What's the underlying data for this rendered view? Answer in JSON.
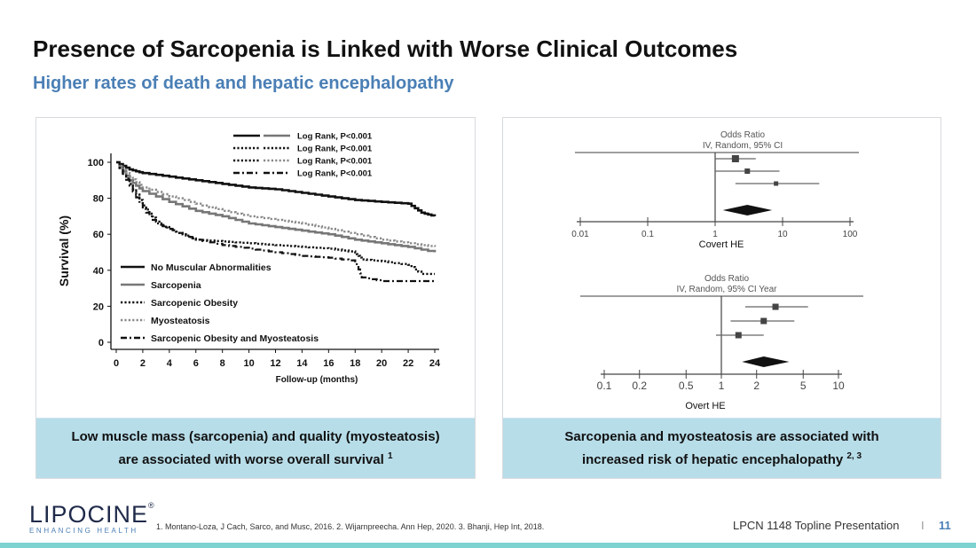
{
  "slide": {
    "title": "Presence of Sarcopenia is Linked with Worse Clinical Outcomes",
    "subtitle": "Higher rates of death and hepatic encephalopathy"
  },
  "left_panel": {
    "caption_line1": "Low muscle mass (sarcopenia) and quality (myosteatosis)",
    "caption_line2": "are associated with worse overall survival",
    "caption_sup": "1"
  },
  "right_panel": {
    "caption_line1": "Sarcopenia and myosteatosis are associated with",
    "caption_line2": "increased risk of hepatic encephalopathy",
    "caption_sup": "2, 3"
  },
  "footer": {
    "logo_text": "LIPOCINE",
    "logo_reg": "®",
    "logo_tagline": "ENHANCING HEALTH",
    "references": "1. Montano-Loza, J Cach, Sarco, and Musc, 2016. 2. Wijarnpreecha. Ann Hep, 2020. 3. Bhanji, Hep Int, 2018.",
    "presentation": "LPCN 1148 Topline Presentation",
    "separator": "I",
    "page": "11"
  },
  "chart_data": [
    {
      "type": "line",
      "subtype": "kaplan-meier",
      "title": "",
      "xlabel": "Follow-up (months)",
      "ylabel": "Survival (%)",
      "xlim": [
        0,
        24
      ],
      "ylim": [
        0,
        100
      ],
      "x_ticks": [
        0,
        2,
        4,
        6,
        8,
        10,
        12,
        14,
        16,
        18,
        20,
        22,
        24
      ],
      "y_ticks": [
        0,
        20,
        40,
        60,
        80,
        100
      ],
      "logrank_labels": [
        "Log Rank, P<0.001",
        "Log Rank, P<0.001",
        "Log Rank, P<0.001",
        "Log Rank, P<0.001"
      ],
      "logrank_styles": [
        "solid",
        "dotted",
        "dotted-gray",
        "dashdot"
      ],
      "series": [
        {
          "name": "No Muscular Abnormalities",
          "style": "solid-black",
          "x": [
            0,
            1,
            2,
            4,
            6,
            8,
            10,
            12,
            14,
            16,
            18,
            20,
            22,
            23,
            24
          ],
          "y": [
            100,
            96,
            94,
            92,
            90,
            88,
            86,
            85,
            83,
            81,
            79,
            78,
            77,
            72,
            70
          ]
        },
        {
          "name": "Sarcopenia",
          "style": "solid-gray",
          "x": [
            0,
            1,
            2,
            4,
            6,
            8,
            10,
            12,
            14,
            16,
            18,
            20,
            22,
            24
          ],
          "y": [
            100,
            90,
            84,
            78,
            73,
            70,
            66,
            64,
            62,
            60,
            57,
            55,
            53,
            50
          ]
        },
        {
          "name": "Sarcopenic Obesity",
          "style": "dotted-black",
          "x": [
            0,
            1,
            2,
            3,
            4,
            5,
            6,
            8,
            10,
            12,
            14,
            16,
            18,
            18.5,
            20,
            22,
            23,
            24
          ],
          "y": [
            100,
            88,
            76,
            67,
            63,
            60,
            57,
            56,
            55,
            54,
            53,
            52,
            50,
            46,
            45,
            43,
            38,
            38
          ]
        },
        {
          "name": "Myosteatosis",
          "style": "dotted-gray",
          "x": [
            0,
            1,
            2,
            4,
            6,
            8,
            10,
            12,
            14,
            16,
            18,
            20,
            22,
            24
          ],
          "y": [
            100,
            92,
            86,
            81,
            77,
            73,
            70,
            68,
            66,
            63,
            60,
            57,
            55,
            53
          ]
        },
        {
          "name": "Sarcopenic Obesity and Myosteatosis",
          "style": "dashdot-black",
          "x": [
            0,
            1,
            2,
            3,
            4,
            5,
            6,
            8,
            10,
            12,
            14,
            16,
            18,
            18.5,
            20,
            22,
            24
          ],
          "y": [
            100,
            87,
            74,
            66,
            63,
            60,
            57,
            54,
            52,
            50,
            48,
            47,
            45,
            36,
            34,
            34,
            34
          ]
        }
      ]
    },
    {
      "type": "forest",
      "header_line1": "Odds Ratio",
      "header_line2": "IV, Random, 95% CI",
      "scale": "log",
      "x_ticks": [
        0.01,
        0.1,
        1,
        10,
        100
      ],
      "x_tick_labels": [
        "0.01",
        "0.1",
        "1",
        "10",
        "100"
      ],
      "label": "Covert HE",
      "studies": [
        {
          "or": 2,
          "lo": 1,
          "hi": 4
        },
        {
          "or": 3,
          "lo": 1,
          "hi": 9
        },
        {
          "or": 8,
          "lo": 2,
          "hi": 35
        }
      ],
      "pooled": {
        "or": 3,
        "lo": 1.3,
        "hi": 7
      }
    },
    {
      "type": "forest",
      "header_line1": "Odds Ratio",
      "header_line2": "IV, Random, 95% CI Year",
      "scale": "log",
      "x_ticks": [
        0.1,
        0.2,
        0.5,
        1,
        2,
        5,
        10
      ],
      "x_tick_labels": [
        "0.1",
        "0.2",
        "0.5",
        "1",
        "2",
        "5",
        "10"
      ],
      "label": "Overt HE",
      "studies": [
        {
          "or": 2.9,
          "lo": 1.6,
          "hi": 5.5
        },
        {
          "or": 2.3,
          "lo": 1.2,
          "hi": 4.2
        },
        {
          "or": 1.4,
          "lo": 0.9,
          "hi": 2.3
        }
      ],
      "pooled": {
        "or": 2.3,
        "lo": 1.5,
        "hi": 3.8
      }
    }
  ]
}
